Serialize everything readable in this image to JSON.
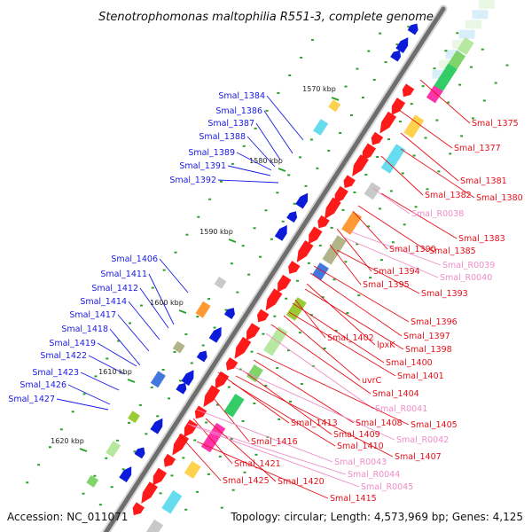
{
  "title": "Stenotrophomonas maltophilia R551-3, complete genome",
  "footer": {
    "accession": "Accession: NC_011071",
    "topology": "Topology: circular; Length: 4,573,969 bp; Genes: 4,125"
  },
  "colors": {
    "backbone": "#777777",
    "forward_gene": "#ff1a1a",
    "reverse_gene": "#0b1bd9",
    "left_label": "#1a1ae6",
    "right_label": "#e6101a",
    "rna_label": "#f08cc8",
    "ticks": "#2aa02a"
  },
  "kbp_markers": [
    "1570 kbp",
    "1580 kbp",
    "1590 kbp",
    "1600 kbp",
    "1610 kbp",
    "1620 kbp"
  ],
  "left_labels": [
    "Smal_1384",
    "Smal_1386",
    "Smal_1387",
    "Smal_1388",
    "Smal_1389",
    "Smal_1391",
    "Smal_1392",
    "Smal_1406",
    "Smal_1411",
    "Smal_1412",
    "Smal_1414",
    "Smal_1417",
    "Smal_1418",
    "Smal_1419",
    "Smal_1422",
    "Smal_1423",
    "Smal_1426",
    "Smal_1427"
  ],
  "right_labels": [
    {
      "text": "Smal_1375",
      "type": "gene"
    },
    {
      "text": "Smal_1377",
      "type": "gene"
    },
    {
      "text": "Smal_1381",
      "type": "gene"
    },
    {
      "text": "Smal_1382",
      "type": "gene"
    },
    {
      "text": "Smal_1380",
      "type": "gene"
    },
    {
      "text": "Smal_R0038",
      "type": "rna"
    },
    {
      "text": "Smal_1383",
      "type": "gene"
    },
    {
      "text": "Smal_1390",
      "type": "gene"
    },
    {
      "text": "Smal_1385",
      "type": "gene"
    },
    {
      "text": "Smal_R0039",
      "type": "rna"
    },
    {
      "text": "Smal_R0040",
      "type": "rna"
    },
    {
      "text": "Smal_1394",
      "type": "gene"
    },
    {
      "text": "Smal_1395",
      "type": "gene"
    },
    {
      "text": "Smal_1393",
      "type": "gene"
    },
    {
      "text": "Smal_1396",
      "type": "gene"
    },
    {
      "text": "Smal_1397",
      "type": "gene"
    },
    {
      "text": "Smal_1402",
      "type": "gene"
    },
    {
      "text": "lpxK",
      "type": "gene"
    },
    {
      "text": "Smal_1398",
      "type": "gene"
    },
    {
      "text": "Smal_1400",
      "type": "gene"
    },
    {
      "text": "Smal_1401",
      "type": "gene"
    },
    {
      "text": "uvrC",
      "type": "gene"
    },
    {
      "text": "Smal_1404",
      "type": "gene"
    },
    {
      "text": "Smal_R0041",
      "type": "rna"
    },
    {
      "text": "Smal_1413",
      "type": "gene"
    },
    {
      "text": "Smal_1408",
      "type": "gene"
    },
    {
      "text": "Smal_1405",
      "type": "gene"
    },
    {
      "text": "Smal_1409",
      "type": "gene"
    },
    {
      "text": "Smal_1416",
      "type": "gene"
    },
    {
      "text": "Smal_R0042",
      "type": "rna"
    },
    {
      "text": "Smal_1410",
      "type": "gene"
    },
    {
      "text": "Smal_1407",
      "type": "gene"
    },
    {
      "text": "Smal_1421",
      "type": "gene"
    },
    {
      "text": "Smal_R0043",
      "type": "rna"
    },
    {
      "text": "Smal_R0044",
      "type": "rna"
    },
    {
      "text": "Smal_1425",
      "type": "gene"
    },
    {
      "text": "Smal_1420",
      "type": "gene"
    },
    {
      "text": "Smal_R0045",
      "type": "rna"
    },
    {
      "text": "Smal_1415",
      "type": "gene"
    }
  ]
}
